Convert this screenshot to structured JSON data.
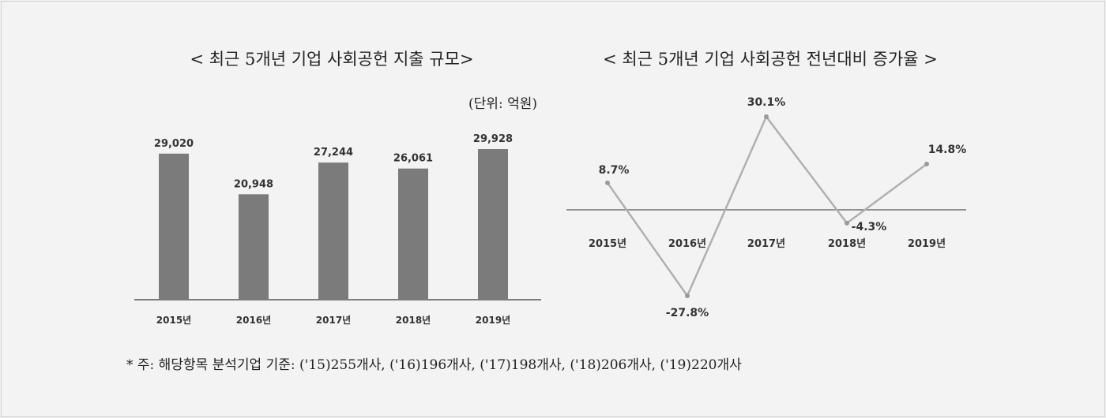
{
  "chart_data": [
    {
      "type": "bar",
      "title": "< 최근 5개년 기업 사회공헌 지출 규모>",
      "unit_label": "(단위: 억원)",
      "categories": [
        "2015년",
        "2016년",
        "2017년",
        "2018년",
        "2019년"
      ],
      "values": [
        29020,
        20948,
        27244,
        26061,
        29928
      ],
      "value_labels": [
        "29,020",
        "20,948",
        "27,244",
        "26,061",
        "29,928"
      ],
      "ylim": [
        0,
        29928
      ],
      "bar_color": "#7b7b7b",
      "grid": false,
      "legend": "none"
    },
    {
      "type": "line",
      "title": "< 최근 5개년 기업 사회공헌 전년대비 증가율 >",
      "categories": [
        "2015년",
        "2016년",
        "2017년",
        "2018년",
        "2019년"
      ],
      "values": [
        8.7,
        -27.8,
        30.1,
        -4.3,
        14.8
      ],
      "value_labels": [
        "8.7%",
        "-27.8%",
        "30.1%",
        "-4.3%",
        "14.8%"
      ],
      "ylim": [
        -27.8,
        30.1
      ],
      "line_color": "#b0b0b0",
      "grid": false,
      "legend": "none"
    }
  ],
  "footnote": "* 주: 해당항목 분석기업 기준: ('15)255개사, ('16)196개사, ('17)198개사, ('18)206개사, ('19)220개사"
}
